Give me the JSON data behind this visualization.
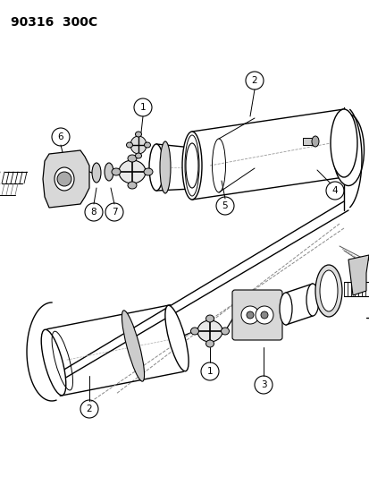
{
  "title": "90316  300C",
  "bg_color": "#ffffff",
  "line_color": "#000000",
  "title_fontsize": 10,
  "fig_width": 4.14,
  "fig_height": 5.33,
  "dpi": 100
}
